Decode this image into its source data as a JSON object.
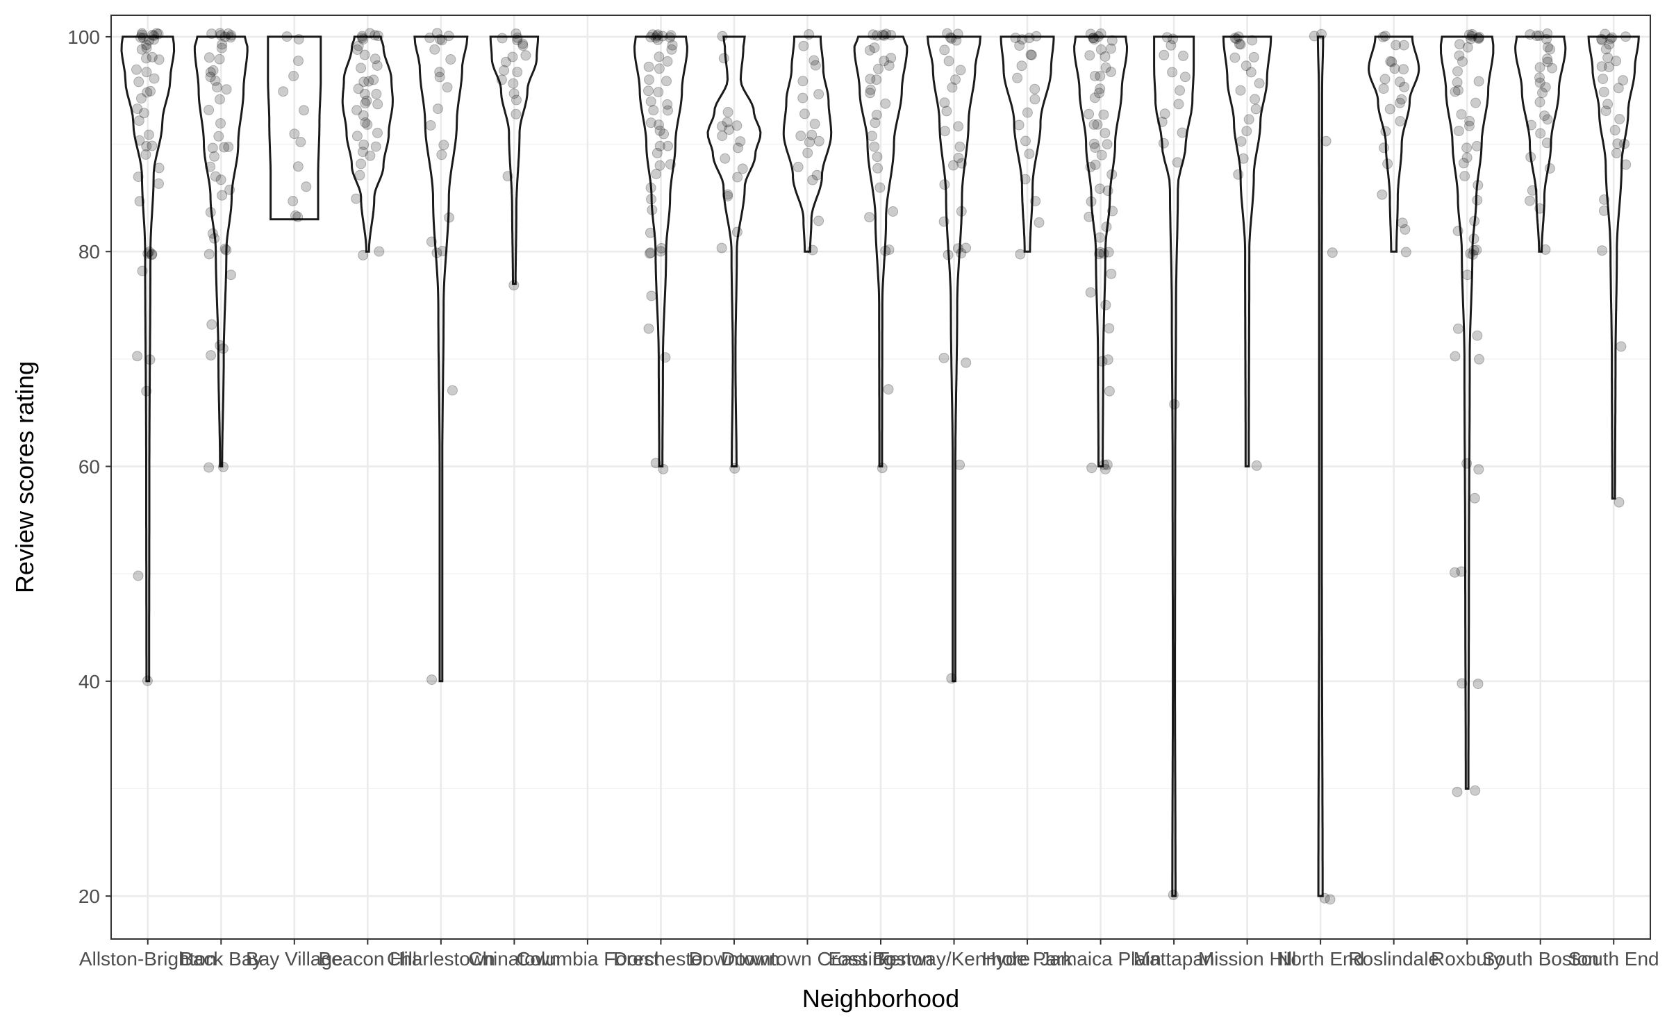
{
  "chart_data": {
    "type": "violin",
    "xlabel": "Neighborhood",
    "ylabel": "Review scores rating",
    "ylim": [
      16,
      102
    ],
    "yticks": [
      20,
      40,
      60,
      80,
      100
    ],
    "grid": true,
    "point_color": "#000000",
    "line_color": "#1a1a1a",
    "categories": [
      {
        "name": "Allston-Brighton",
        "min": 40,
        "dens": [
          [
            40,
            0.05
          ],
          [
            60,
            0.06
          ],
          [
            80,
            0.1
          ],
          [
            87,
            0.22
          ],
          [
            92,
            0.55
          ],
          [
            96,
            0.85
          ],
          [
            99,
            1.0
          ],
          [
            100,
            0.95
          ]
        ],
        "points": [
          40,
          50,
          67,
          70,
          70,
          78,
          80,
          80,
          80,
          80,
          85,
          86,
          87,
          88,
          89,
          90,
          90,
          90,
          91,
          92,
          93,
          93,
          94,
          95,
          95,
          96,
          96,
          97,
          97,
          98,
          98,
          98,
          99,
          99,
          99,
          100,
          100,
          100,
          100,
          100,
          100,
          100,
          100,
          100,
          100
        ]
      },
      {
        "name": "Back Bay",
        "min": 60,
        "dens": [
          [
            60,
            0.04
          ],
          [
            70,
            0.1
          ],
          [
            80,
            0.2
          ],
          [
            85,
            0.4
          ],
          [
            90,
            0.65
          ],
          [
            95,
            0.85
          ],
          [
            99,
            1.0
          ],
          [
            100,
            0.9
          ]
        ],
        "points": [
          60,
          60,
          70,
          71,
          71,
          73,
          78,
          80,
          80,
          80,
          81,
          82,
          84,
          85,
          86,
          87,
          87,
          88,
          89,
          90,
          90,
          90,
          91,
          92,
          93,
          94,
          95,
          95,
          96,
          96,
          97,
          97,
          98,
          98,
          99,
          99,
          100,
          100,
          100,
          100,
          100,
          100,
          100
        ]
      },
      {
        "name": "Bay Village",
        "min": 83,
        "dens": [
          [
            83,
            0.9
          ],
          [
            87,
            0.9
          ],
          [
            92,
            0.95
          ],
          [
            96,
            1.0
          ],
          [
            100,
            1.0
          ]
        ],
        "points": [
          83,
          83,
          85,
          86,
          88,
          90,
          91,
          93,
          95,
          96,
          98,
          100,
          100
        ]
      },
      {
        "name": "Beacon Hill",
        "min": 80,
        "dens": [
          [
            80,
            0.05
          ],
          [
            85,
            0.25
          ],
          [
            88,
            0.6
          ],
          [
            91,
            0.8
          ],
          [
            94,
            0.95
          ],
          [
            96,
            0.9
          ],
          [
            99,
            0.6
          ],
          [
            100,
            0.5
          ]
        ],
        "points": [
          80,
          80,
          85,
          87,
          88,
          89,
          89,
          90,
          90,
          91,
          91,
          92,
          92,
          93,
          93,
          94,
          94,
          94,
          95,
          95,
          95,
          96,
          96,
          96,
          97,
          97,
          98,
          98,
          99,
          99,
          100,
          100,
          100,
          100,
          100,
          100
        ]
      },
      {
        "name": "Charlestown",
        "min": 40,
        "dens": [
          [
            40,
            0.05
          ],
          [
            60,
            0.05
          ],
          [
            75,
            0.1
          ],
          [
            85,
            0.3
          ],
          [
            92,
            0.6
          ],
          [
            97,
            0.8
          ],
          [
            100,
            1.0
          ]
        ],
        "points": [
          40,
          67,
          80,
          80,
          81,
          83,
          89,
          90,
          92,
          93,
          95,
          96,
          97,
          98,
          99,
          100,
          100,
          100,
          100,
          100
        ]
      },
      {
        "name": "Chinatown",
        "min": 77,
        "dens": [
          [
            77,
            0.05
          ],
          [
            84,
            0.08
          ],
          [
            91,
            0.2
          ],
          [
            95,
            0.5
          ],
          [
            98,
            0.85
          ],
          [
            100,
            0.9
          ]
        ],
        "points": [
          77,
          87,
          93,
          94,
          95,
          96,
          96,
          97,
          97,
          98,
          98,
          98,
          99,
          99,
          100,
          100,
          100,
          100
        ]
      },
      {
        "name": "Columbia Forest",
        "min": null,
        "dens": [],
        "points": []
      },
      {
        "name": "Dorchester",
        "min": 60,
        "dens": [
          [
            60,
            0.06
          ],
          [
            70,
            0.08
          ],
          [
            80,
            0.2
          ],
          [
            85,
            0.35
          ],
          [
            90,
            0.55
          ],
          [
            95,
            0.8
          ],
          [
            99,
            1.0
          ],
          [
            100,
            0.95
          ]
        ],
        "points": [
          60,
          60,
          70,
          73,
          76,
          80,
          80,
          80,
          80,
          82,
          84,
          85,
          86,
          87,
          88,
          88,
          89,
          90,
          90,
          91,
          91,
          92,
          92,
          93,
          93,
          94,
          94,
          95,
          95,
          96,
          96,
          97,
          97,
          98,
          98,
          99,
          99,
          100,
          100,
          100,
          100,
          100,
          100,
          100,
          100,
          100
        ]
      },
      {
        "name": "Downtown",
        "min": 60,
        "dens": [
          [
            60,
            0.09
          ],
          [
            70,
            0.05
          ],
          [
            80,
            0.1
          ],
          [
            86,
            0.4
          ],
          [
            89,
            0.8
          ],
          [
            91,
            1.0
          ],
          [
            93,
            0.75
          ],
          [
            96,
            0.25
          ],
          [
            99,
            0.35
          ],
          [
            100,
            0.4
          ]
        ],
        "points": [
          60,
          80,
          82,
          85,
          85,
          87,
          88,
          89,
          90,
          90,
          91,
          91,
          92,
          92,
          92,
          93,
          98,
          100
        ]
      },
      {
        "name": "Downtown Crossing",
        "min": 80,
        "dens": [
          [
            80,
            0.1
          ],
          [
            83,
            0.15
          ],
          [
            87,
            0.55
          ],
          [
            91,
            0.9
          ],
          [
            94,
            0.8
          ],
          [
            97,
            0.6
          ],
          [
            100,
            0.5
          ]
        ],
        "points": [
          80,
          83,
          87,
          87,
          88,
          89,
          90,
          90,
          91,
          91,
          92,
          93,
          94,
          95,
          96,
          97,
          98,
          99,
          100
        ]
      },
      {
        "name": "East Boston",
        "min": 60,
        "dens": [
          [
            60,
            0.05
          ],
          [
            75,
            0.06
          ],
          [
            83,
            0.2
          ],
          [
            90,
            0.5
          ],
          [
            95,
            0.8
          ],
          [
            99,
            1.0
          ],
          [
            100,
            0.85
          ]
        ],
        "points": [
          60,
          67,
          80,
          80,
          83,
          84,
          86,
          88,
          89,
          90,
          91,
          92,
          93,
          94,
          95,
          95,
          96,
          96,
          97,
          97,
          98,
          98,
          99,
          99,
          100,
          100,
          100,
          100,
          100,
          100
        ]
      },
      {
        "name": "Fenway/Kenmore",
        "min": 40,
        "dens": [
          [
            40,
            0.05
          ],
          [
            60,
            0.05
          ],
          [
            75,
            0.12
          ],
          [
            85,
            0.3
          ],
          [
            92,
            0.55
          ],
          [
            97,
            0.8
          ],
          [
            100,
            1.0
          ]
        ],
        "points": [
          40,
          60,
          70,
          70,
          80,
          80,
          80,
          80,
          83,
          84,
          86,
          88,
          88,
          89,
          90,
          91,
          92,
          93,
          94,
          95,
          96,
          97,
          98,
          99,
          100,
          100,
          100,
          100,
          100
        ]
      },
      {
        "name": "Hyde Park",
        "min": 80,
        "dens": [
          [
            80,
            0.1
          ],
          [
            86,
            0.2
          ],
          [
            92,
            0.5
          ],
          [
            97,
            0.9
          ],
          [
            100,
            1.0
          ]
        ],
        "points": [
          80,
          83,
          85,
          87,
          89,
          90,
          92,
          93,
          94,
          95,
          96,
          97,
          98,
          98,
          99,
          100,
          100,
          100,
          100
        ]
      },
      {
        "name": "Jamaica Plain",
        "min": 60,
        "dens": [
          [
            60,
            0.08
          ],
          [
            70,
            0.1
          ],
          [
            80,
            0.18
          ],
          [
            85,
            0.35
          ],
          [
            90,
            0.55
          ],
          [
            95,
            0.8
          ],
          [
            99,
            1.0
          ],
          [
            100,
            0.95
          ]
        ],
        "points": [
          60,
          60,
          60,
          60,
          67,
          70,
          70,
          73,
          75,
          76,
          78,
          80,
          80,
          80,
          80,
          81,
          82,
          83,
          84,
          85,
          86,
          86,
          87,
          88,
          88,
          89,
          90,
          90,
          90,
          91,
          92,
          92,
          93,
          93,
          94,
          95,
          95,
          96,
          96,
          97,
          97,
          98,
          98,
          99,
          99,
          100,
          100,
          100,
          100,
          100,
          100,
          100
        ]
      },
      {
        "name": "Mattapan",
        "min": 20,
        "dens": [
          [
            20,
            0.06
          ],
          [
            40,
            0.04
          ],
          [
            60,
            0.05
          ],
          [
            75,
            0.08
          ],
          [
            86,
            0.15
          ],
          [
            90,
            0.45
          ],
          [
            94,
            0.7
          ],
          [
            97,
            0.75
          ],
          [
            100,
            0.75
          ]
        ],
        "points": [
          20,
          66,
          88,
          90,
          91,
          92,
          93,
          94,
          95,
          96,
          97,
          98,
          98,
          99,
          100,
          100
        ]
      },
      {
        "name": "Mission Hill",
        "min": 60,
        "dens": [
          [
            60,
            0.06
          ],
          [
            80,
            0.08
          ],
          [
            87,
            0.25
          ],
          [
            92,
            0.5
          ],
          [
            96,
            0.75
          ],
          [
            100,
            0.9
          ]
        ],
        "points": [
          60,
          87,
          89,
          90,
          91,
          92,
          93,
          94,
          95,
          96,
          97,
          97,
          98,
          98,
          99,
          99,
          100,
          100,
          100,
          100
        ]
      },
      {
        "name": "North End",
        "min": 20,
        "dens": [
          [
            20,
            0.08
          ],
          [
            50,
            0.05
          ],
          [
            80,
            0.05
          ],
          [
            95,
            0.06
          ],
          [
            100,
            0.1
          ]
        ],
        "points": [
          20,
          20,
          80,
          90,
          100,
          100
        ]
      },
      {
        "name": "Roslindale",
        "min": 80,
        "dens": [
          [
            80,
            0.1
          ],
          [
            85,
            0.15
          ],
          [
            90,
            0.3
          ],
          [
            94,
            0.6
          ],
          [
            97,
            0.95
          ],
          [
            100,
            0.7
          ]
        ],
        "points": [
          80,
          82,
          83,
          85,
          88,
          90,
          91,
          92,
          93,
          94,
          94,
          95,
          95,
          96,
          96,
          97,
          97,
          98,
          98,
          99,
          99,
          100,
          100
        ]
      },
      {
        "name": "Roxbury",
        "min": 30,
        "dens": [
          [
            30,
            0.05
          ],
          [
            50,
            0.07
          ],
          [
            70,
            0.1
          ],
          [
            80,
            0.2
          ],
          [
            85,
            0.35
          ],
          [
            90,
            0.55
          ],
          [
            95,
            0.8
          ],
          [
            99,
            1.0
          ],
          [
            100,
            0.95
          ]
        ],
        "points": [
          30,
          30,
          40,
          40,
          50,
          50,
          57,
          60,
          60,
          70,
          70,
          72,
          73,
          78,
          80,
          80,
          80,
          80,
          81,
          82,
          83,
          85,
          86,
          87,
          88,
          89,
          90,
          90,
          91,
          92,
          92,
          93,
          94,
          95,
          95,
          96,
          96,
          97,
          98,
          98,
          99,
          99,
          100,
          100,
          100,
          100,
          100,
          100,
          100
        ]
      },
      {
        "name": "South Boston",
        "min": 80,
        "dens": [
          [
            80,
            0.05
          ],
          [
            85,
            0.15
          ],
          [
            90,
            0.4
          ],
          [
            95,
            0.7
          ],
          [
            99,
            0.95
          ],
          [
            100,
            0.9
          ]
        ],
        "points": [
          80,
          84,
          85,
          86,
          88,
          89,
          90,
          91,
          92,
          92,
          93,
          94,
          95,
          95,
          96,
          96,
          97,
          97,
          98,
          98,
          99,
          99,
          100,
          100,
          100,
          100,
          100
        ]
      },
      {
        "name": "South End",
        "min": 57,
        "dens": [
          [
            57,
            0.05
          ],
          [
            70,
            0.07
          ],
          [
            80,
            0.12
          ],
          [
            88,
            0.3
          ],
          [
            93,
            0.55
          ],
          [
            97,
            0.8
          ],
          [
            100,
            0.95
          ]
        ],
        "points": [
          57,
          71,
          80,
          84,
          85,
          88,
          89,
          90,
          90,
          91,
          92,
          93,
          94,
          95,
          95,
          96,
          96,
          97,
          97,
          98,
          98,
          99,
          99,
          100,
          100,
          100,
          100,
          100,
          100
        ]
      }
    ]
  }
}
